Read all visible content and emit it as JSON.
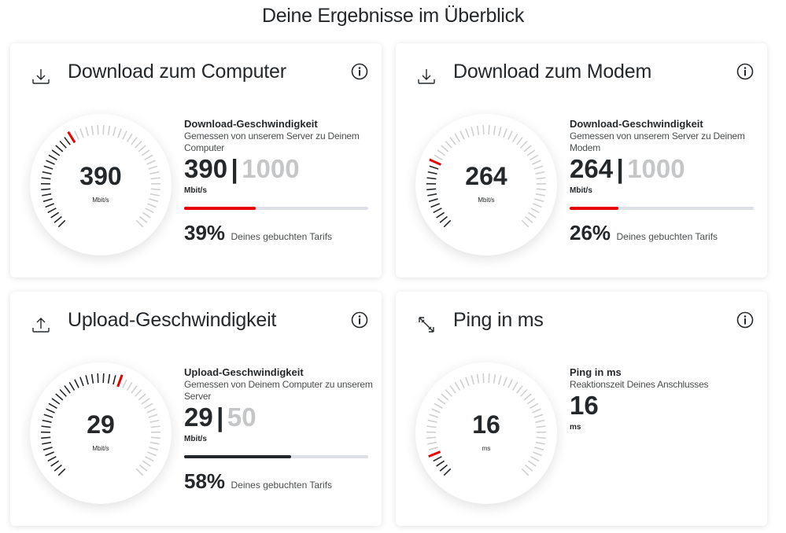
{
  "page": {
    "title": "Deine Ergebnisse im Überblick"
  },
  "colors": {
    "red": "#e60000",
    "dark": "#25282b",
    "tick_inactive": "#cfd0d1",
    "bar_track": "#dde0e6"
  },
  "cards": [
    {
      "id": "download-computer",
      "icon": "download-icon",
      "title": "Download zum Computer",
      "info_title": "Download-Geschwindigkeit",
      "info_sub": "Gemessen von unserem Server zu Deinem Computer",
      "value": "390",
      "separator": "|",
      "max": "1000",
      "unit": "Mbit/s",
      "percent": "39%",
      "percent_label": "Deines gebuchten Tarifs",
      "fraction": 0.39,
      "bar_color": "#e60000",
      "has_bar": true
    },
    {
      "id": "download-modem",
      "icon": "download-icon",
      "title": "Download zum Modem",
      "info_title": "Download-Geschwindigkeit",
      "info_sub": "Gemessen von unserem Server zu Deinem Modem",
      "value": "264",
      "separator": "|",
      "max": "1000",
      "unit": "Mbit/s",
      "percent": "26%",
      "percent_label": "Deines gebuchten Tarifs",
      "fraction": 0.264,
      "bar_color": "#e60000",
      "has_bar": true
    },
    {
      "id": "upload",
      "icon": "upload-icon",
      "title": "Upload-Geschwindigkeit",
      "info_title": "Upload-Geschwindigkeit",
      "info_sub": "Gemessen von Deinem Computer zu unserem Server",
      "value": "29",
      "separator": "|",
      "max": "50",
      "unit": "Mbit/s",
      "percent": "58%",
      "percent_label": "Deines gebuchten Tarifs",
      "fraction": 0.58,
      "bar_color": "#25282b",
      "has_bar": true
    },
    {
      "id": "ping",
      "icon": "ping-icon",
      "title": "Ping in ms",
      "info_title": "Ping in ms",
      "info_sub": "Reaktionszeit Deines Anschlusses",
      "value": "16",
      "separator": "",
      "max": "",
      "unit": "ms",
      "percent": "",
      "percent_label": "",
      "fraction": 0.08,
      "bar_color": "",
      "has_bar": false
    }
  ]
}
